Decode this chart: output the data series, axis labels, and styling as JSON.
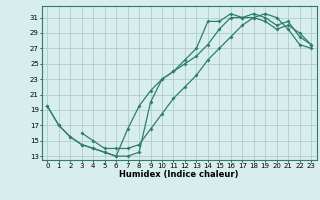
{
  "xlabel": "Humidex (Indice chaleur)",
  "bg_color": "#d8eeed",
  "grid_color": "#b0cccc",
  "line_color": "#2e7d6e",
  "xlim": [
    -0.5,
    23.5
  ],
  "ylim": [
    12.5,
    32.5
  ],
  "yticks": [
    13,
    15,
    17,
    19,
    21,
    23,
    25,
    27,
    29,
    31
  ],
  "xticks": [
    0,
    1,
    2,
    3,
    4,
    5,
    6,
    7,
    8,
    9,
    10,
    11,
    12,
    13,
    14,
    15,
    16,
    17,
    18,
    19,
    20,
    21,
    22,
    23
  ],
  "line1_x": [
    0,
    1,
    2,
    3,
    4,
    5,
    6,
    7,
    8,
    9,
    10,
    11,
    12,
    13,
    14,
    15,
    16,
    17,
    18,
    19,
    20,
    21,
    22,
    23
  ],
  "line1_y": [
    19.5,
    17.0,
    15.5,
    14.5,
    14.0,
    13.5,
    13.0,
    13.0,
    13.5,
    20.0,
    23.0,
    24.0,
    25.5,
    27.0,
    30.5,
    30.5,
    31.5,
    31.0,
    31.5,
    31.0,
    30.0,
    30.5,
    28.5,
    27.5
  ],
  "line2_x": [
    0,
    1,
    2,
    3,
    4,
    5,
    6,
    7,
    8,
    9,
    10,
    11,
    12,
    13,
    14,
    15,
    16,
    17,
    18,
    19,
    20,
    21,
    22,
    23
  ],
  "line2_y": [
    19.5,
    17.0,
    15.5,
    14.5,
    14.0,
    13.5,
    13.0,
    16.5,
    19.5,
    21.5,
    23.0,
    24.0,
    25.0,
    26.0,
    27.5,
    29.5,
    31.0,
    31.0,
    31.0,
    30.5,
    29.5,
    30.0,
    29.0,
    27.5
  ],
  "line3_x": [
    3,
    4,
    5,
    6,
    7,
    8,
    9,
    10,
    11,
    12,
    13,
    14,
    15,
    16,
    17,
    18,
    19,
    20,
    21,
    22,
    23
  ],
  "line3_y": [
    16.0,
    15.0,
    14.0,
    14.0,
    14.0,
    14.5,
    16.5,
    18.5,
    20.5,
    22.0,
    23.5,
    25.5,
    27.0,
    28.5,
    30.0,
    31.0,
    31.5,
    31.0,
    29.5,
    27.5,
    27.0
  ]
}
